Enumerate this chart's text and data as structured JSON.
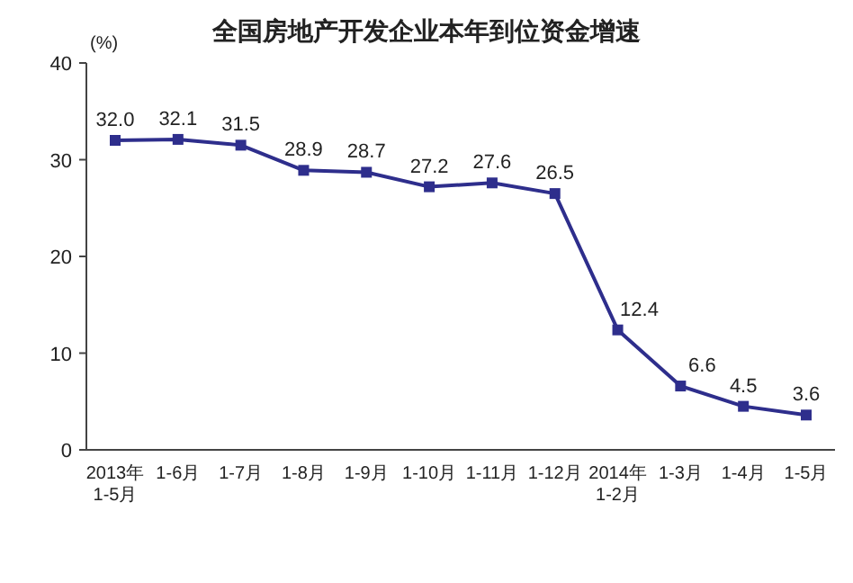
{
  "chart_data": {
    "type": "line",
    "title": "全国房地产开发企业本年到位资金增速",
    "ylabel": "(%)",
    "categories": [
      "2013年\n1-5月",
      "1-6月",
      "1-7月",
      "1-8月",
      "1-9月",
      "1-10月",
      "1-11月",
      "1-12月",
      "2014年\n1-2月",
      "1-3月",
      "1-4月",
      "1-5月"
    ],
    "values": [
      32.0,
      32.1,
      31.5,
      28.9,
      28.7,
      27.2,
      27.6,
      26.5,
      12.4,
      6.6,
      4.5,
      3.6
    ],
    "value_labels": [
      "32.0",
      "32.1",
      "31.5",
      "28.9",
      "28.7",
      "27.2",
      "27.6",
      "26.5",
      "12.4",
      "6.6",
      "4.5",
      "3.6"
    ],
    "color": "#2e2e8c",
    "marker": "square",
    "line_style": "solid",
    "ylim": [
      0,
      40
    ],
    "yticks": [
      0,
      10,
      20,
      30,
      40
    ],
    "grid": false
  }
}
